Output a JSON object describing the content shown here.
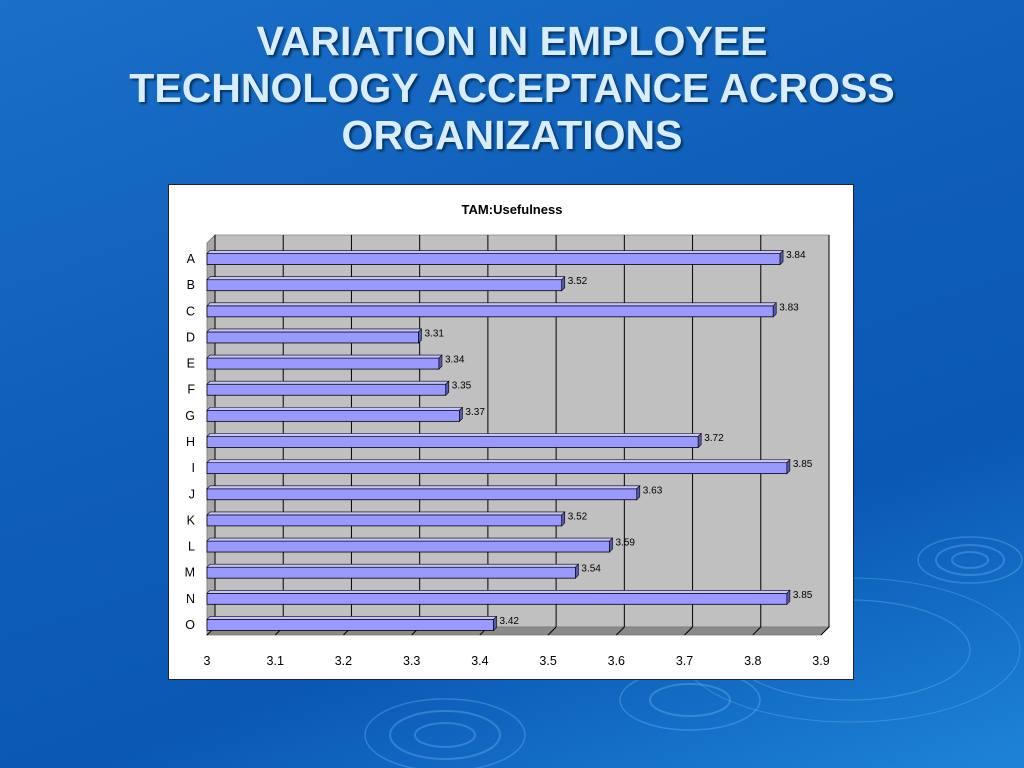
{
  "slide": {
    "title_lines": [
      "VARIATION IN EMPLOYEE",
      "TECHNOLOGY ACCEPTANCE ACROSS",
      "ORGANIZATIONS"
    ]
  },
  "colors": {
    "bar_fill": "#9999ff",
    "bar_top": "#c4c4ff",
    "bar_side": "#5a5ab0",
    "plot_back": "#c0c0c0",
    "plot_side": "#a8a8a8",
    "plot_floor": "#8a8a8a",
    "grid": "#000000"
  },
  "chart_data": {
    "type": "bar",
    "orientation": "horizontal",
    "style": "3d-clustered",
    "title": "TAM:Usefulness",
    "categories": [
      "A",
      "B",
      "C",
      "D",
      "E",
      "F",
      "G",
      "H",
      "I",
      "J",
      "K",
      "L",
      "M",
      "N",
      "O"
    ],
    "values": [
      3.84,
      3.52,
      3.83,
      3.31,
      3.34,
      3.35,
      3.37,
      3.72,
      3.85,
      3.63,
      3.52,
      3.59,
      3.54,
      3.85,
      3.42
    ],
    "data_labels": [
      "3.84",
      "3.52",
      "3.83",
      "3.31",
      "3.34",
      "3.35",
      "3.37",
      "3.72",
      "3.85",
      "3.63",
      "3.52",
      "3.59",
      "3.54",
      "3.85",
      "3.42"
    ],
    "x_ticks": [
      "3",
      "3.1",
      "3.2",
      "3.3",
      "3.4",
      "3.5",
      "3.6",
      "3.7",
      "3.8",
      "3.9"
    ],
    "xlim": [
      3,
      3.9
    ],
    "xlabel": "",
    "ylabel": "",
    "grid": true,
    "legend": "none"
  }
}
